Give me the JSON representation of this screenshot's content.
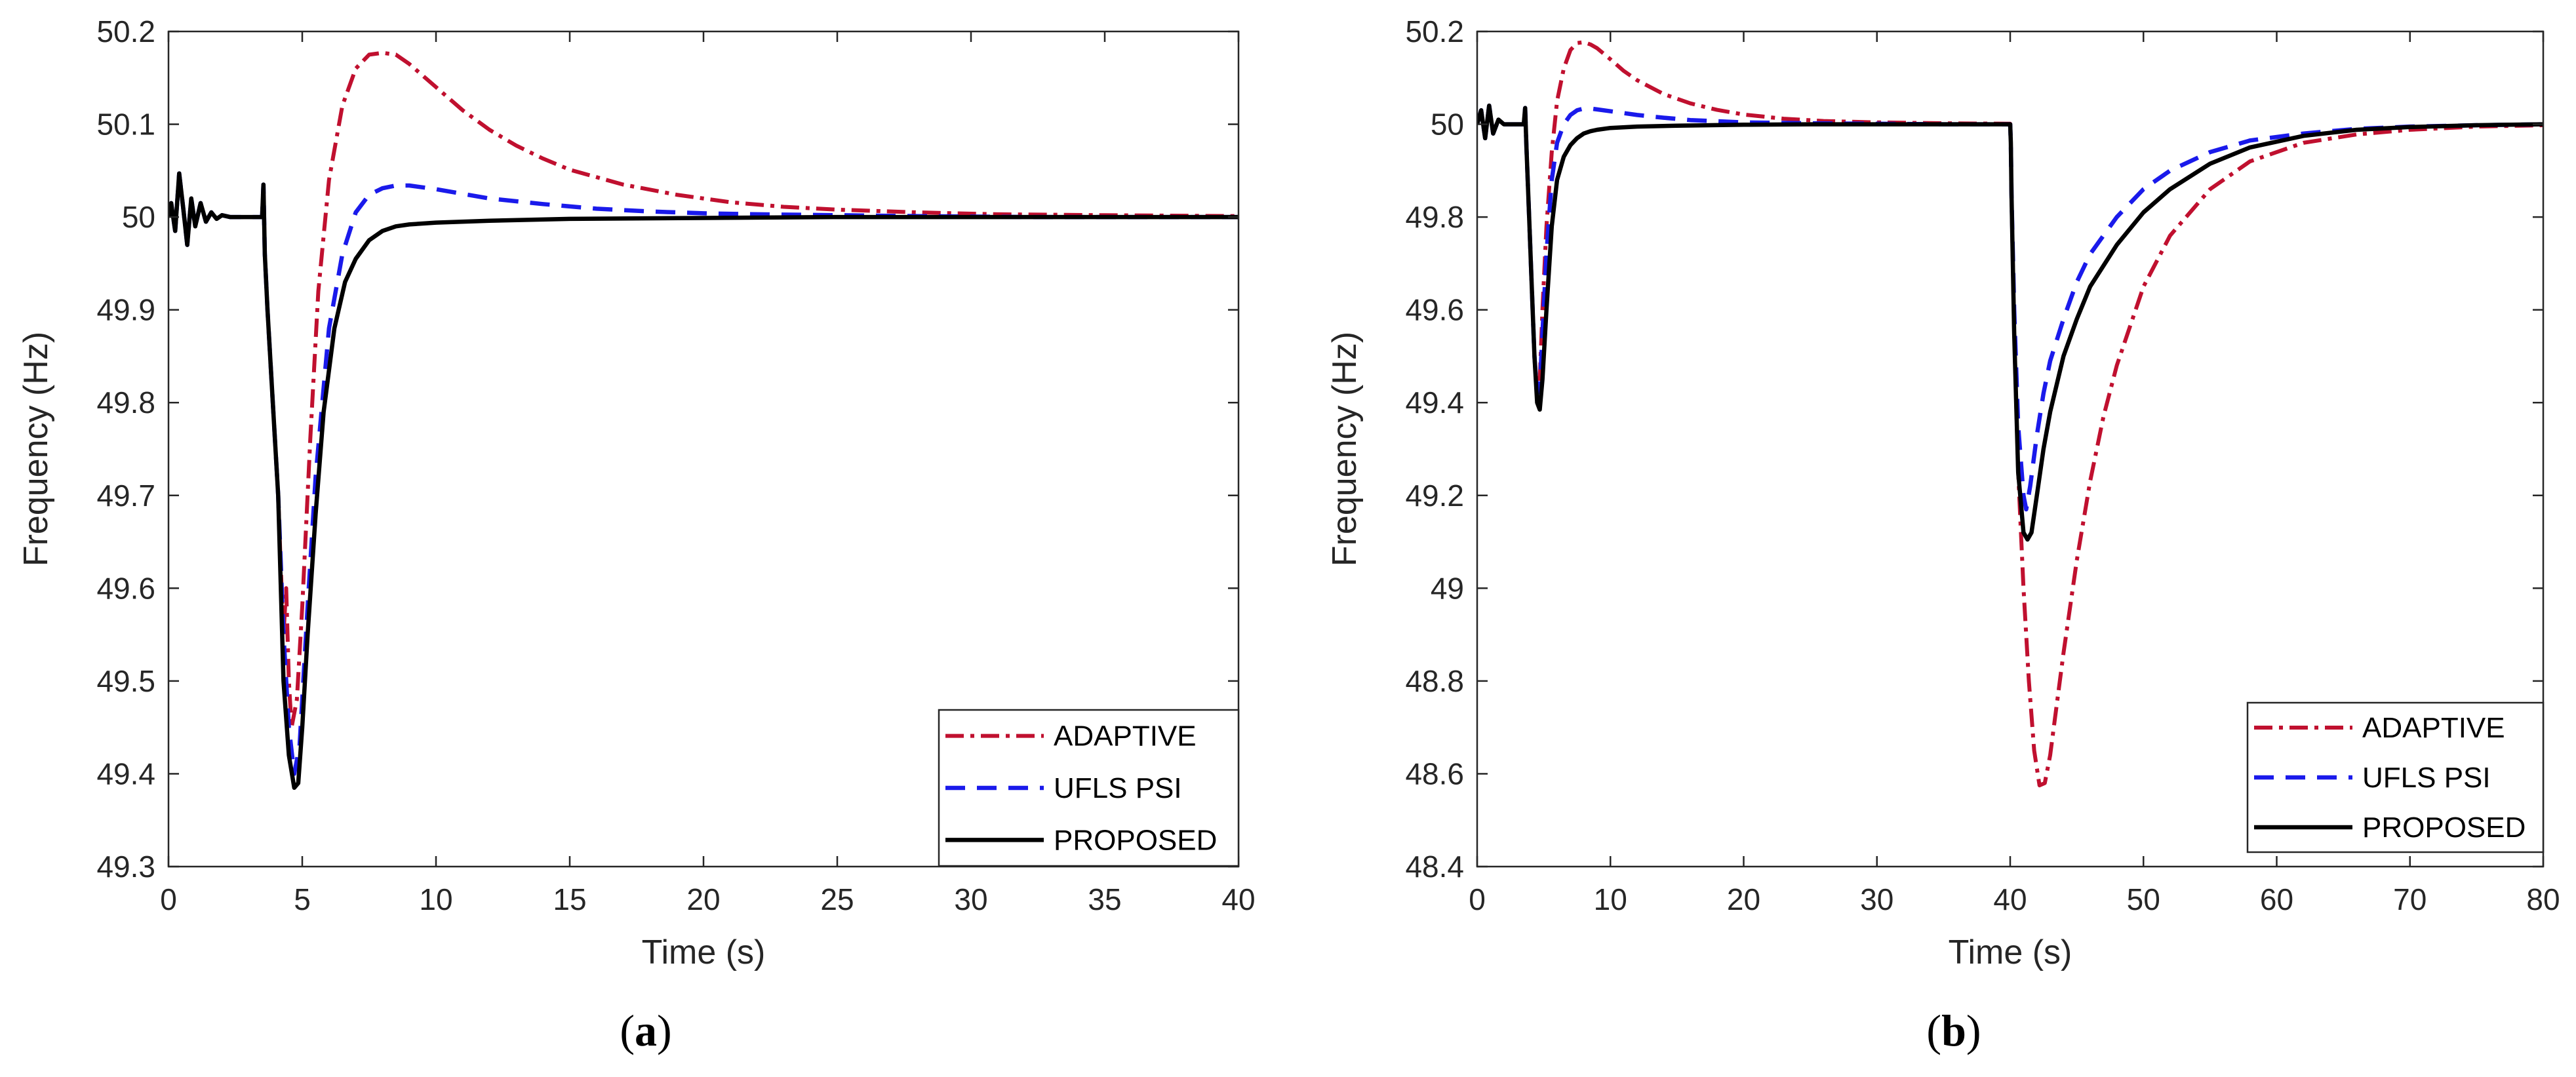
{
  "colors": {
    "adaptive": "#c0102f",
    "ufls": "#1a1aeb",
    "proposed": "#000000",
    "axis": "#262626"
  },
  "chart_data": [
    {
      "type": "line",
      "caption_open": "(",
      "caption_letter": "a",
      "caption_close": ")",
      "xlabel": "Time (s)",
      "ylabel": "Frequency (Hz)",
      "xlim": [
        0,
        40
      ],
      "ylim": [
        49.3,
        50.2
      ],
      "xticks": [
        0,
        5,
        10,
        15,
        20,
        25,
        30,
        35,
        40
      ],
      "xtick_labels": [
        "0",
        "5",
        "10",
        "15",
        "20",
        "25",
        "30",
        "35",
        "40"
      ],
      "yticks": [
        49.3,
        49.4,
        49.5,
        49.6,
        49.7,
        49.8,
        49.9,
        50,
        50.1,
        50.2
      ],
      "ytick_labels": [
        "49.3",
        "49.4",
        "49.5",
        "49.6",
        "49.7",
        "49.8",
        "49.9",
        "50",
        "50.1",
        "50.2"
      ],
      "legend": [
        "ADAPTIVE",
        "UFLS PSI",
        "PROPOSED"
      ],
      "legend_position": "bottom-right",
      "series": [
        {
          "name": "ADAPTIVE",
          "x": [
            0,
            0.1,
            0.25,
            0.4,
            0.55,
            0.7,
            0.85,
            1.0,
            1.2,
            1.4,
            1.6,
            1.8,
            2.0,
            2.3,
            2.6,
            3.0,
            3.5,
            3.55,
            3.6,
            3.7,
            3.9,
            4.1,
            4.2,
            4.3,
            4.4,
            4.5,
            4.6,
            4.8,
            5.0,
            5.3,
            5.6,
            6.0,
            6.5,
            7.0,
            7.5,
            8.0,
            8.5,
            9.0,
            10,
            11,
            12,
            13,
            14,
            15,
            17,
            19,
            21,
            23,
            25,
            28,
            31,
            35,
            40
          ],
          "y": [
            50.0,
            50.015,
            49.985,
            50.047,
            50.01,
            49.97,
            50.02,
            49.99,
            50.015,
            49.995,
            50.005,
            49.998,
            50.002,
            50.0,
            50.0,
            50.0,
            50.0,
            50.035,
            49.96,
            49.9,
            49.8,
            49.7,
            49.62,
            49.55,
            49.6,
            49.5,
            49.45,
            49.48,
            49.58,
            49.76,
            49.92,
            50.04,
            50.12,
            50.16,
            50.175,
            50.177,
            50.175,
            50.165,
            50.14,
            50.115,
            50.094,
            50.077,
            50.063,
            50.051,
            50.035,
            50.024,
            50.016,
            50.011,
            50.008,
            50.005,
            50.003,
            50.002,
            50.001
          ]
        },
        {
          "name": "UFLS PSI",
          "x": [
            0,
            0.1,
            0.25,
            0.4,
            0.55,
            0.7,
            0.85,
            1.0,
            1.2,
            1.4,
            1.6,
            1.8,
            2.0,
            2.3,
            2.6,
            3.0,
            3.5,
            3.55,
            3.6,
            3.7,
            3.9,
            4.1,
            4.3,
            4.5,
            4.7,
            4.9,
            5.2,
            5.5,
            6.0,
            6.5,
            7.0,
            7.5,
            8.0,
            8.5,
            9.0,
            9.5,
            10,
            11,
            12,
            14,
            16,
            18,
            20,
            22,
            25,
            28,
            32,
            36,
            40
          ],
          "y": [
            50.0,
            50.015,
            49.985,
            50.047,
            50.01,
            49.97,
            50.02,
            49.99,
            50.015,
            49.995,
            50.005,
            49.998,
            50.002,
            50.0,
            50.0,
            50.0,
            50.0,
            50.035,
            49.96,
            49.9,
            49.8,
            49.7,
            49.55,
            49.45,
            49.4,
            49.43,
            49.58,
            49.72,
            49.88,
            49.96,
            50.005,
            50.024,
            50.031,
            50.034,
            50.034,
            50.032,
            50.03,
            50.025,
            50.02,
            50.014,
            50.009,
            50.006,
            50.004,
            50.003,
            50.002,
            50.001,
            50.0,
            50.0,
            50.0
          ]
        },
        {
          "name": "PROPOSED",
          "x": [
            0,
            0.1,
            0.25,
            0.4,
            0.55,
            0.7,
            0.85,
            1.0,
            1.2,
            1.4,
            1.6,
            1.8,
            2.0,
            2.3,
            2.6,
            3.0,
            3.5,
            3.55,
            3.6,
            3.7,
            3.9,
            4.1,
            4.3,
            4.5,
            4.7,
            4.85,
            5.0,
            5.2,
            5.5,
            5.8,
            6.2,
            6.6,
            7.0,
            7.5,
            8.0,
            8.5,
            9.0,
            10,
            12,
            15,
            20,
            25,
            30,
            35,
            40
          ],
          "y": [
            50.0,
            50.015,
            49.985,
            50.047,
            50.01,
            49.97,
            50.02,
            49.99,
            50.015,
            49.995,
            50.005,
            49.998,
            50.002,
            50.0,
            50.0,
            50.0,
            50.0,
            50.035,
            49.96,
            49.9,
            49.8,
            49.7,
            49.5,
            49.42,
            49.385,
            49.39,
            49.45,
            49.55,
            49.68,
            49.79,
            49.88,
            49.93,
            49.955,
            49.975,
            49.985,
            49.99,
            49.992,
            49.994,
            49.996,
            49.998,
            49.999,
            50.0,
            50.0,
            50.0,
            50.0
          ]
        }
      ]
    },
    {
      "type": "line",
      "caption_open": "(",
      "caption_letter": "b",
      "caption_close": ")",
      "xlabel": "Time (s)",
      "ylabel": "Frequency (Hz)",
      "xlim": [
        0,
        80
      ],
      "ylim": [
        48.4,
        50.2
      ],
      "xticks": [
        0,
        10,
        20,
        30,
        40,
        50,
        60,
        70,
        80
      ],
      "xtick_labels": [
        "0",
        "10",
        "20",
        "30",
        "40",
        "50",
        "60",
        "70",
        "80"
      ],
      "yticks": [
        48.4,
        48.6,
        48.8,
        49,
        49.2,
        49.4,
        49.6,
        49.8,
        50,
        50.2
      ],
      "ytick_labels": [
        "48.4",
        "48.6",
        "48.8",
        "49",
        "49.2",
        "49.4",
        "49.6",
        "49.8",
        "50",
        "50.2"
      ],
      "legend": [
        "ADAPTIVE",
        "UFLS PSI",
        "PROPOSED"
      ],
      "legend_position": "bottom-right",
      "series": [
        {
          "name": "ADAPTIVE",
          "x": [
            0,
            0.3,
            0.6,
            0.9,
            1.2,
            1.6,
            2.0,
            2.5,
            3.0,
            3.5,
            3.6,
            3.7,
            3.9,
            4.1,
            4.3,
            4.5,
            4.7,
            4.9,
            5.2,
            5.6,
            6.0,
            6.5,
            7.0,
            7.5,
            8.0,
            8.5,
            9.0,
            10,
            11,
            12,
            14,
            16,
            18,
            20,
            23,
            26,
            30,
            35,
            40,
            40.05,
            40.1,
            40.3,
            40.6,
            41.0,
            41.4,
            41.8,
            42.2,
            42.6,
            43.0,
            43.5,
            44.0,
            45,
            46,
            47,
            48,
            50,
            52,
            55,
            58,
            62,
            66,
            70,
            75,
            80
          ],
          "y": [
            50.0,
            50.03,
            49.97,
            50.04,
            49.98,
            50.01,
            50.0,
            50.0,
            50.0,
            50.0,
            50.035,
            49.95,
            49.8,
            49.65,
            49.5,
            49.42,
            49.45,
            49.6,
            49.78,
            49.94,
            50.05,
            50.12,
            50.16,
            50.175,
            50.177,
            50.172,
            50.164,
            50.14,
            50.115,
            50.095,
            50.065,
            50.045,
            50.031,
            50.021,
            50.012,
            50.007,
            50.004,
            50.002,
            50.001,
            49.96,
            49.85,
            49.55,
            49.25,
            49.0,
            48.8,
            48.65,
            48.575,
            48.58,
            48.64,
            48.75,
            48.86,
            49.06,
            49.23,
            49.37,
            49.48,
            49.65,
            49.76,
            49.86,
            49.92,
            49.96,
            49.978,
            49.988,
            49.995,
            49.998
          ]
        },
        {
          "name": "UFLS PSI",
          "x": [
            0,
            0.3,
            0.6,
            0.9,
            1.2,
            1.6,
            2.0,
            2.5,
            3.0,
            3.5,
            3.6,
            3.7,
            3.9,
            4.1,
            4.3,
            4.5,
            4.7,
            4.9,
            5.2,
            5.6,
            6.0,
            6.5,
            7.0,
            7.5,
            8.0,
            8.5,
            9.0,
            10,
            12,
            14,
            16,
            20,
            25,
            30,
            35,
            40,
            40.05,
            40.1,
            40.3,
            40.6,
            41.0,
            41.2,
            41.5,
            42.0,
            42.5,
            43.0,
            44.0,
            45,
            46,
            48,
            50,
            52,
            55,
            58,
            62,
            66,
            70,
            75,
            80
          ],
          "y": [
            50.0,
            50.03,
            49.97,
            50.04,
            49.98,
            50.01,
            50.0,
            50.0,
            50.0,
            50.0,
            50.035,
            49.95,
            49.8,
            49.65,
            49.5,
            49.42,
            49.43,
            49.55,
            49.72,
            49.88,
            49.96,
            50.0,
            50.02,
            50.03,
            50.034,
            50.034,
            50.032,
            50.028,
            50.02,
            50.014,
            50.009,
            50.004,
            50.002,
            50.001,
            50.0,
            50.0,
            49.96,
            49.85,
            49.6,
            49.35,
            49.2,
            49.17,
            49.22,
            49.33,
            49.42,
            49.49,
            49.58,
            49.66,
            49.72,
            49.8,
            49.86,
            49.9,
            49.94,
            49.965,
            49.98,
            49.99,
            49.995,
            49.998,
            50.0
          ]
        },
        {
          "name": "PROPOSED",
          "x": [
            0,
            0.3,
            0.6,
            0.9,
            1.2,
            1.6,
            2.0,
            2.5,
            3.0,
            3.5,
            3.6,
            3.7,
            3.9,
            4.1,
            4.3,
            4.5,
            4.7,
            4.9,
            5.2,
            5.6,
            6.0,
            6.5,
            7.0,
            7.5,
            8.0,
            8.5,
            9.0,
            10,
            12,
            15,
            20,
            25,
            30,
            35,
            40,
            40.05,
            40.1,
            40.3,
            40.6,
            41.0,
            41.3,
            41.6,
            42.0,
            42.5,
            43.0,
            44.0,
            45,
            46,
            48,
            50,
            52,
            55,
            58,
            62,
            66,
            70,
            75,
            80
          ],
          "y": [
            50.0,
            50.03,
            49.97,
            50.04,
            49.98,
            50.01,
            50.0,
            50.0,
            50.0,
            50.0,
            50.035,
            49.95,
            49.8,
            49.65,
            49.5,
            49.4,
            49.385,
            49.45,
            49.6,
            49.78,
            49.88,
            49.93,
            49.955,
            49.97,
            49.98,
            49.985,
            49.988,
            49.992,
            49.995,
            49.997,
            49.999,
            50.0,
            50.0,
            50.0,
            50.0,
            49.96,
            49.85,
            49.55,
            49.25,
            49.12,
            49.105,
            49.12,
            49.2,
            49.3,
            49.38,
            49.5,
            49.58,
            49.65,
            49.74,
            49.81,
            49.86,
            49.915,
            49.95,
            49.975,
            49.988,
            49.994,
            49.998,
            50.0
          ]
        }
      ]
    }
  ]
}
